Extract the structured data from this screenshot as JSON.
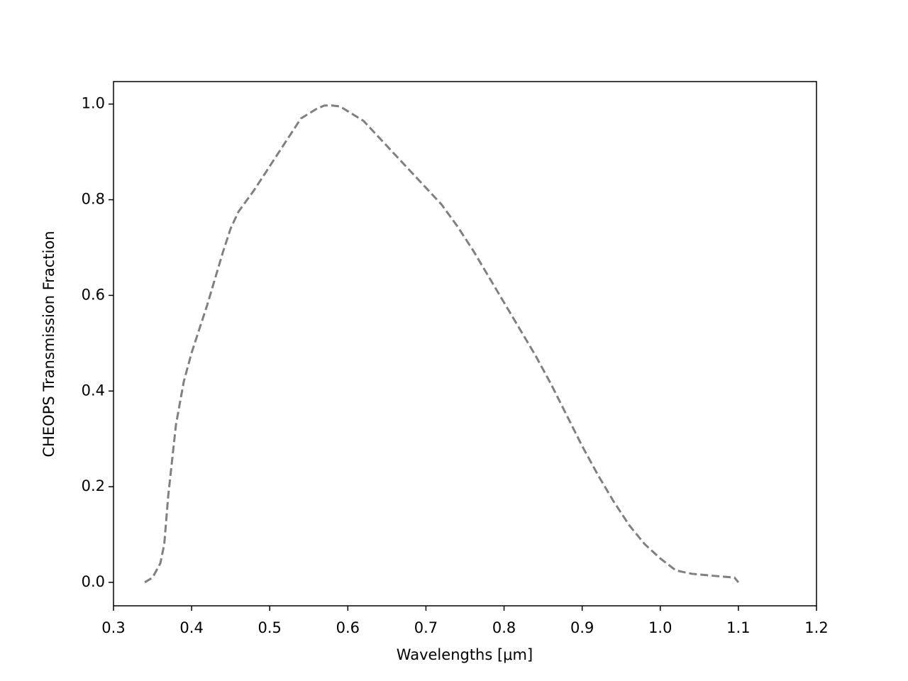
{
  "chart_data": {
    "type": "line",
    "xlabel": "Wavelengths [μm]",
    "ylabel": "CHEOPS Transmission Fraction",
    "x": [
      0.34,
      0.35,
      0.36,
      0.365,
      0.37,
      0.38,
      0.39,
      0.4,
      0.42,
      0.44,
      0.45,
      0.46,
      0.48,
      0.5,
      0.52,
      0.54,
      0.56,
      0.57,
      0.58,
      0.59,
      0.6,
      0.62,
      0.64,
      0.66,
      0.68,
      0.7,
      0.72,
      0.74,
      0.76,
      0.78,
      0.8,
      0.82,
      0.84,
      0.86,
      0.88,
      0.9,
      0.92,
      0.94,
      0.96,
      0.98,
      1.0,
      1.02,
      1.04,
      1.06,
      1.08,
      1.095,
      1.1
    ],
    "values": [
      0,
      0.01,
      0.04,
      0.08,
      0.18,
      0.33,
      0.42,
      0.48,
      0.58,
      0.69,
      0.74,
      0.775,
      0.82,
      0.87,
      0.92,
      0.97,
      0.99,
      0.997,
      0.997,
      0.995,
      0.985,
      0.965,
      0.93,
      0.895,
      0.86,
      0.825,
      0.79,
      0.745,
      0.695,
      0.64,
      0.585,
      0.53,
      0.475,
      0.415,
      0.35,
      0.285,
      0.225,
      0.17,
      0.12,
      0.08,
      0.05,
      0.025,
      0.018,
      0.015,
      0.012,
      0.01,
      0
    ],
    "color": "#808080",
    "linestyle": "dashed",
    "xlim": [
      0.3,
      1.2
    ],
    "xticks": [
      0.3,
      0.4,
      0.5,
      0.6,
      0.7,
      0.8,
      0.9,
      {
        "value": 1,
        "label": "1.0"
      },
      1.1,
      1.2
    ],
    "ylim": [
      -0.049,
      1.047
    ],
    "yticks": [
      {
        "value": 0,
        "label": "0.0"
      },
      0.2,
      0.4,
      0.6,
      0.8,
      {
        "value": 1,
        "label": "1.0"
      }
    ]
  }
}
